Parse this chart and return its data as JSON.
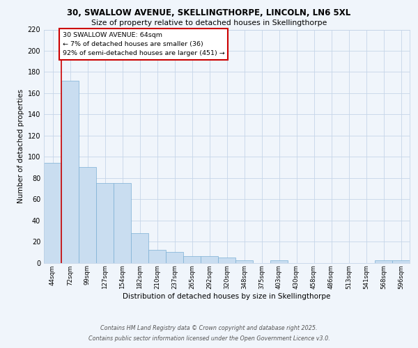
{
  "title1": "30, SWALLOW AVENUE, SKELLINGTHORPE, LINCOLN, LN6 5XL",
  "title2": "Size of property relative to detached houses in Skellingthorpe",
  "xlabel": "Distribution of detached houses by size in Skellingthorpe",
  "ylabel": "Number of detached properties",
  "categories": [
    "44sqm",
    "72sqm",
    "99sqm",
    "127sqm",
    "154sqm",
    "182sqm",
    "210sqm",
    "237sqm",
    "265sqm",
    "292sqm",
    "320sqm",
    "348sqm",
    "375sqm",
    "403sqm",
    "430sqm",
    "458sqm",
    "486sqm",
    "513sqm",
    "541sqm",
    "568sqm",
    "596sqm"
  ],
  "values": [
    94,
    172,
    90,
    75,
    75,
    28,
    12,
    10,
    6,
    6,
    5,
    2,
    0,
    2,
    0,
    0,
    0,
    0,
    0,
    2,
    2
  ],
  "bar_color": "#c9ddf0",
  "bar_edge_color": "#7bafd4",
  "grid_color": "#c5d5e8",
  "bg_color": "#f0f5fb",
  "annotation_title": "30 SWALLOW AVENUE: 64sqm",
  "annotation_line1": "← 7% of detached houses are smaller (36)",
  "annotation_line2": "92% of semi-detached houses are larger (451) →",
  "annotation_box_color": "#ffffff",
  "annotation_box_edge": "#cc0000",
  "footer1": "Contains HM Land Registry data © Crown copyright and database right 2025.",
  "footer2": "Contains public sector information licensed under the Open Government Licence v3.0.",
  "ylim": [
    0,
    220
  ],
  "yticks": [
    0,
    20,
    40,
    60,
    80,
    100,
    120,
    140,
    160,
    180,
    200,
    220
  ],
  "red_line_x": 0.5
}
